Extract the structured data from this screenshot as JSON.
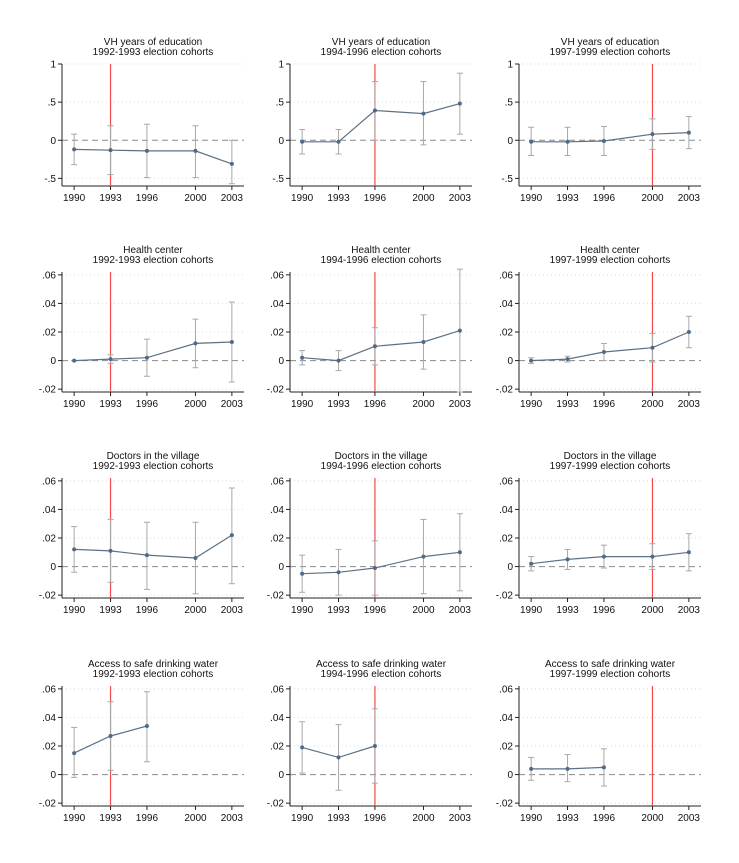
{
  "figure": {
    "line_color": "#5b7187",
    "point_color": "#4f6a86",
    "ci_color": "#a9a9a9",
    "vline_color": "#f04a4a",
    "zero_color": "#8a8a8a",
    "grid_color": "#d9d9d9"
  },
  "chart_data": [
    {
      "type": "line",
      "title": "VH years of education",
      "subtitle": "1992-1993 election cohorts",
      "x": [
        1990,
        1993,
        1996,
        2000,
        2003
      ],
      "y": [
        -0.12,
        -0.13,
        -0.14,
        -0.14,
        -0.31
      ],
      "ci_low": [
        -0.32,
        -0.45,
        -0.49,
        -0.49,
        -0.57
      ],
      "ci_high": [
        0.08,
        0.19,
        0.21,
        0.19,
        0.0
      ],
      "vline": 1993,
      "xlim": [
        1989,
        2004
      ],
      "xticks": [
        1990,
        1993,
        1996,
        2000,
        2003
      ],
      "ylim": [
        -0.6,
        1.0
      ],
      "yticks": [
        -0.5,
        0,
        0.5,
        1
      ],
      "ytick_labels": [
        "-.5",
        "0",
        ".5",
        "1"
      ]
    },
    {
      "type": "line",
      "title": "VH years of education",
      "subtitle": "1994-1996 election cohorts",
      "x": [
        1990,
        1993,
        1996,
        2000,
        2003
      ],
      "y": [
        -0.02,
        -0.02,
        0.39,
        0.35,
        0.48
      ],
      "ci_low": [
        -0.18,
        -0.18,
        0.0,
        -0.06,
        0.08
      ],
      "ci_high": [
        0.14,
        0.14,
        0.77,
        0.77,
        0.88
      ],
      "vline": 1996,
      "xlim": [
        1989,
        2004
      ],
      "xticks": [
        1990,
        1993,
        1996,
        2000,
        2003
      ],
      "ylim": [
        -0.6,
        1.0
      ],
      "yticks": [
        -0.5,
        0,
        0.5,
        1
      ],
      "ytick_labels": [
        "-.5",
        "0",
        ".5",
        "1"
      ]
    },
    {
      "type": "line",
      "title": "VH years of education",
      "subtitle": "1997-1999 election cohorts",
      "x": [
        1990,
        1993,
        1996,
        2000,
        2003
      ],
      "y": [
        -0.02,
        -0.02,
        -0.01,
        0.08,
        0.1
      ],
      "ci_low": [
        -0.2,
        -0.2,
        -0.2,
        -0.12,
        -0.11
      ],
      "ci_high": [
        0.17,
        0.17,
        0.18,
        0.28,
        0.31
      ],
      "vline": 2000,
      "xlim": [
        1989,
        2004
      ],
      "xticks": [
        1990,
        1993,
        1996,
        2000,
        2003
      ],
      "ylim": [
        -0.6,
        1.0
      ],
      "yticks": [
        -0.5,
        0,
        0.5,
        1
      ],
      "ytick_labels": [
        "-.5",
        "0",
        ".5",
        "1"
      ]
    },
    {
      "type": "line",
      "title": "Health center",
      "subtitle": "1992-1993 election cohorts",
      "x": [
        1990,
        1993,
        1996,
        2000,
        2003
      ],
      "y": [
        0.0,
        0.001,
        0.002,
        0.012,
        0.013
      ],
      "ci_low": [
        0.0,
        -0.002,
        -0.011,
        -0.005,
        -0.015
      ],
      "ci_high": [
        0.0,
        0.004,
        0.015,
        0.029,
        0.041
      ],
      "vline": 1993,
      "xlim": [
        1989,
        2004
      ],
      "xticks": [
        1990,
        1993,
        1996,
        2000,
        2003
      ],
      "ylim": [
        -0.022,
        0.062
      ],
      "yticks": [
        -0.02,
        0,
        0.02,
        0.04,
        0.06
      ],
      "ytick_labels": [
        "-.02",
        "0",
        ".02",
        ".04",
        ".06"
      ]
    },
    {
      "type": "line",
      "title": "Health center",
      "subtitle": "1994-1996 election cohorts",
      "x": [
        1990,
        1993,
        1996,
        2000,
        2003
      ],
      "y": [
        0.002,
        0.0,
        0.01,
        0.013,
        0.021
      ],
      "ci_low": [
        -0.003,
        -0.007,
        -0.003,
        -0.006,
        -0.022
      ],
      "ci_high": [
        0.007,
        0.007,
        0.023,
        0.032,
        0.064
      ],
      "vline": 1996,
      "xlim": [
        1989,
        2004
      ],
      "xticks": [
        1990,
        1993,
        1996,
        2000,
        2003
      ],
      "ylim": [
        -0.022,
        0.062
      ],
      "yticks": [
        -0.02,
        0,
        0.02,
        0.04,
        0.06
      ],
      "ytick_labels": [
        "-.02",
        "0",
        ".02",
        ".04",
        ".06"
      ]
    },
    {
      "type": "line",
      "title": "Health center",
      "subtitle": "1997-1999 election cohorts",
      "x": [
        1990,
        1993,
        1996,
        2000,
        2003
      ],
      "y": [
        0.0,
        0.001,
        0.006,
        0.009,
        0.02
      ],
      "ci_low": [
        -0.002,
        -0.001,
        0.0,
        -0.001,
        0.009
      ],
      "ci_high": [
        0.002,
        0.003,
        0.012,
        0.019,
        0.031
      ],
      "vline": 2000,
      "xlim": [
        1989,
        2004
      ],
      "xticks": [
        1990,
        1993,
        1996,
        2000,
        2003
      ],
      "ylim": [
        -0.022,
        0.062
      ],
      "yticks": [
        -0.02,
        0,
        0.02,
        0.04,
        0.06
      ],
      "ytick_labels": [
        "-.02",
        "0",
        ".02",
        ".04",
        ".06"
      ]
    },
    {
      "type": "line",
      "title": "Doctors in the village",
      "subtitle": "1992-1993 election cohorts",
      "x": [
        1990,
        1993,
        1996,
        2000,
        2003
      ],
      "y": [
        0.012,
        0.011,
        0.008,
        0.006,
        0.022
      ],
      "ci_low": [
        -0.004,
        -0.011,
        -0.016,
        -0.019,
        -0.012
      ],
      "ci_high": [
        0.028,
        0.033,
        0.031,
        0.031,
        0.055
      ],
      "vline": 1993,
      "xlim": [
        1989,
        2004
      ],
      "xticks": [
        1990,
        1993,
        1996,
        2000,
        2003
      ],
      "ylim": [
        -0.022,
        0.062
      ],
      "yticks": [
        -0.02,
        0,
        0.02,
        0.04,
        0.06
      ],
      "ytick_labels": [
        "-.02",
        "0",
        ".02",
        ".04",
        ".06"
      ]
    },
    {
      "type": "line",
      "title": "Doctors in the village",
      "subtitle": "1994-1996 election cohorts",
      "x": [
        1990,
        1993,
        1996,
        2000,
        2003
      ],
      "y": [
        -0.005,
        -0.004,
        -0.001,
        0.007,
        0.01
      ],
      "ci_low": [
        -0.018,
        -0.02,
        -0.02,
        -0.019,
        -0.017
      ],
      "ci_high": [
        0.008,
        0.012,
        0.018,
        0.033,
        0.037
      ],
      "vline": 1996,
      "xlim": [
        1989,
        2004
      ],
      "xticks": [
        1990,
        1993,
        1996,
        2000,
        2003
      ],
      "ylim": [
        -0.022,
        0.062
      ],
      "yticks": [
        -0.02,
        0,
        0.02,
        0.04,
        0.06
      ],
      "ytick_labels": [
        "-.02",
        "0",
        ".02",
        ".04",
        ".06"
      ]
    },
    {
      "type": "line",
      "title": "Doctors in the village",
      "subtitle": "1997-1999 election cohorts",
      "x": [
        1990,
        1993,
        1996,
        2000,
        2003
      ],
      "y": [
        0.002,
        0.005,
        0.007,
        0.007,
        0.01
      ],
      "ci_low": [
        -0.003,
        -0.002,
        -0.001,
        -0.002,
        -0.003
      ],
      "ci_high": [
        0.007,
        0.012,
        0.015,
        0.016,
        0.023
      ],
      "vline": 2000,
      "xlim": [
        1989,
        2004
      ],
      "xticks": [
        1990,
        1993,
        1996,
        2000,
        2003
      ],
      "ylim": [
        -0.022,
        0.062
      ],
      "yticks": [
        -0.02,
        0,
        0.02,
        0.04,
        0.06
      ],
      "ytick_labels": [
        "-.02",
        "0",
        ".02",
        ".04",
        ".06"
      ]
    },
    {
      "type": "line",
      "title": "Access to safe drinking water",
      "subtitle": "1992-1993 election cohorts",
      "x": [
        1990,
        1993,
        1996
      ],
      "y": [
        0.015,
        0.027,
        0.034
      ],
      "ci_low": [
        -0.002,
        0.003,
        0.009
      ],
      "ci_high": [
        0.033,
        0.051,
        0.058
      ],
      "vline": 1993,
      "xlim": [
        1989,
        2004
      ],
      "xticks": [
        1990,
        1993,
        1996,
        2000,
        2003
      ],
      "ylim": [
        -0.022,
        0.062
      ],
      "yticks": [
        -0.02,
        0,
        0.02,
        0.04,
        0.06
      ],
      "ytick_labels": [
        "-.02",
        "0",
        ".02",
        ".04",
        ".06"
      ]
    },
    {
      "type": "line",
      "title": "Access to safe drinking water",
      "subtitle": "1994-1996 election cohorts",
      "x": [
        1990,
        1993,
        1996
      ],
      "y": [
        0.019,
        0.012,
        0.02
      ],
      "ci_low": [
        0.001,
        -0.011,
        -0.006
      ],
      "ci_high": [
        0.037,
        0.035,
        0.046
      ],
      "vline": 1996,
      "xlim": [
        1989,
        2004
      ],
      "xticks": [
        1990,
        1993,
        1996,
        2000,
        2003
      ],
      "ylim": [
        -0.022,
        0.062
      ],
      "yticks": [
        -0.02,
        0,
        0.02,
        0.04,
        0.06
      ],
      "ytick_labels": [
        "-.02",
        "0",
        ".02",
        ".04",
        ".06"
      ]
    },
    {
      "type": "line",
      "title": "Access to safe drinking water",
      "subtitle": "1997-1999 election cohorts",
      "x": [
        1990,
        1993,
        1996
      ],
      "y": [
        0.004,
        0.004,
        0.005
      ],
      "ci_low": [
        -0.004,
        -0.005,
        -0.008
      ],
      "ci_high": [
        0.012,
        0.014,
        0.018
      ],
      "vline": 2000,
      "xlim": [
        1989,
        2004
      ],
      "xticks": [
        1990,
        1993,
        1996,
        2000,
        2003
      ],
      "ylim": [
        -0.022,
        0.062
      ],
      "yticks": [
        -0.02,
        0,
        0.02,
        0.04,
        0.06
      ],
      "ytick_labels": [
        "-.02",
        "0",
        ".02",
        ".04",
        ".06"
      ]
    }
  ]
}
